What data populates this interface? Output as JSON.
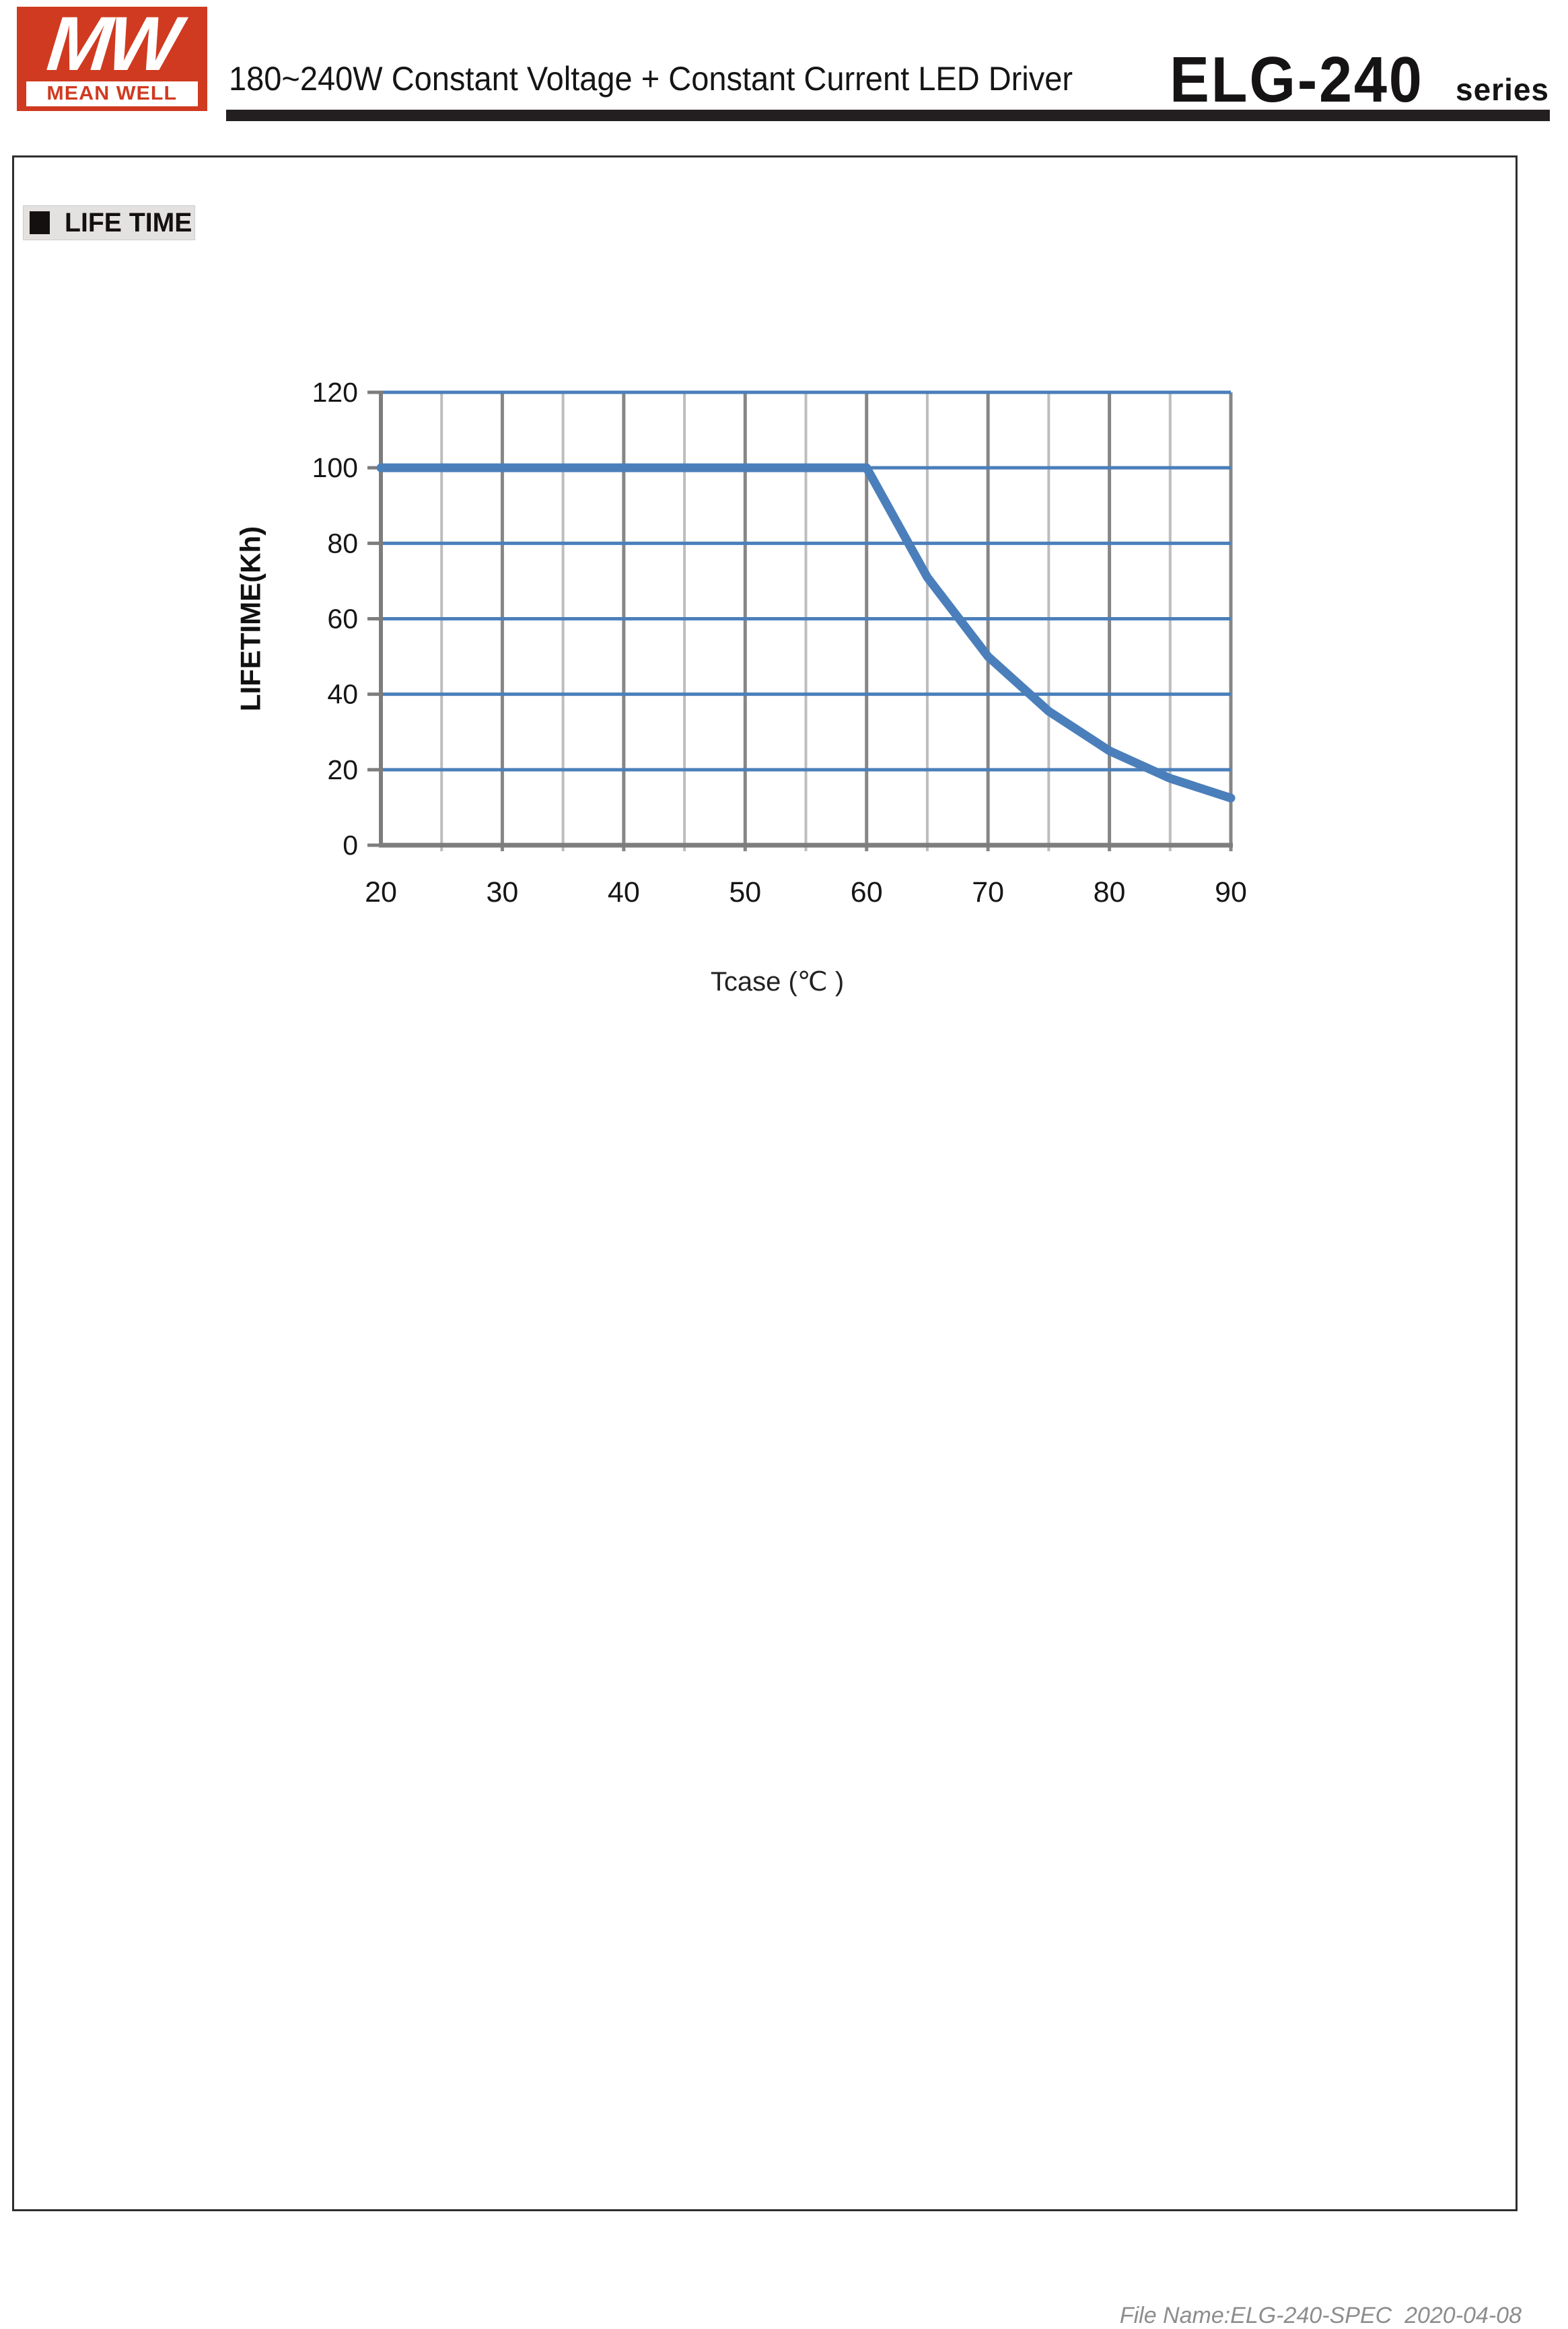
{
  "header": {
    "logo": {
      "monogram": "MW",
      "brand": "MEAN WELL"
    },
    "title": "180~240W Constant Voltage + Constant Current LED Driver",
    "model": "ELG-240",
    "series_suffix": "series"
  },
  "section": {
    "title": "LIFE TIME"
  },
  "footer": {
    "file_info": "File Name:ELG-240-SPEC  2020-04-08"
  },
  "chart_data": {
    "type": "line",
    "title": "",
    "xlabel": "Tcase (℃ )",
    "ylabel": "LIFETIME(Kh)",
    "xlim": [
      20,
      90
    ],
    "ylim": [
      0,
      120
    ],
    "x_ticks": [
      20,
      30,
      40,
      50,
      60,
      70,
      80,
      90
    ],
    "x_minor_ticks": [
      25,
      35,
      45,
      55,
      65,
      75,
      85
    ],
    "y_ticks": [
      0,
      20,
      40,
      60,
      80,
      100,
      120
    ],
    "grid": true,
    "legend": false,
    "x": [
      20,
      25,
      30,
      35,
      40,
      45,
      50,
      55,
      60,
      65,
      70,
      75,
      80,
      85,
      90
    ],
    "series": [
      {
        "name": "lifetime",
        "values": [
          100,
          100,
          100,
          100,
          100,
          100,
          100,
          100,
          100,
          71,
          50,
          35.5,
          25,
          17.7,
          12.5
        ]
      }
    ],
    "colors": {
      "curve": "#4b7fbb",
      "grid_h_blue": "#4b7fbb",
      "grid_v_major": "#868686",
      "grid_v_minor": "#bdbdbd",
      "axis": "#7d7d7d",
      "tick_text": "#161616"
    }
  }
}
